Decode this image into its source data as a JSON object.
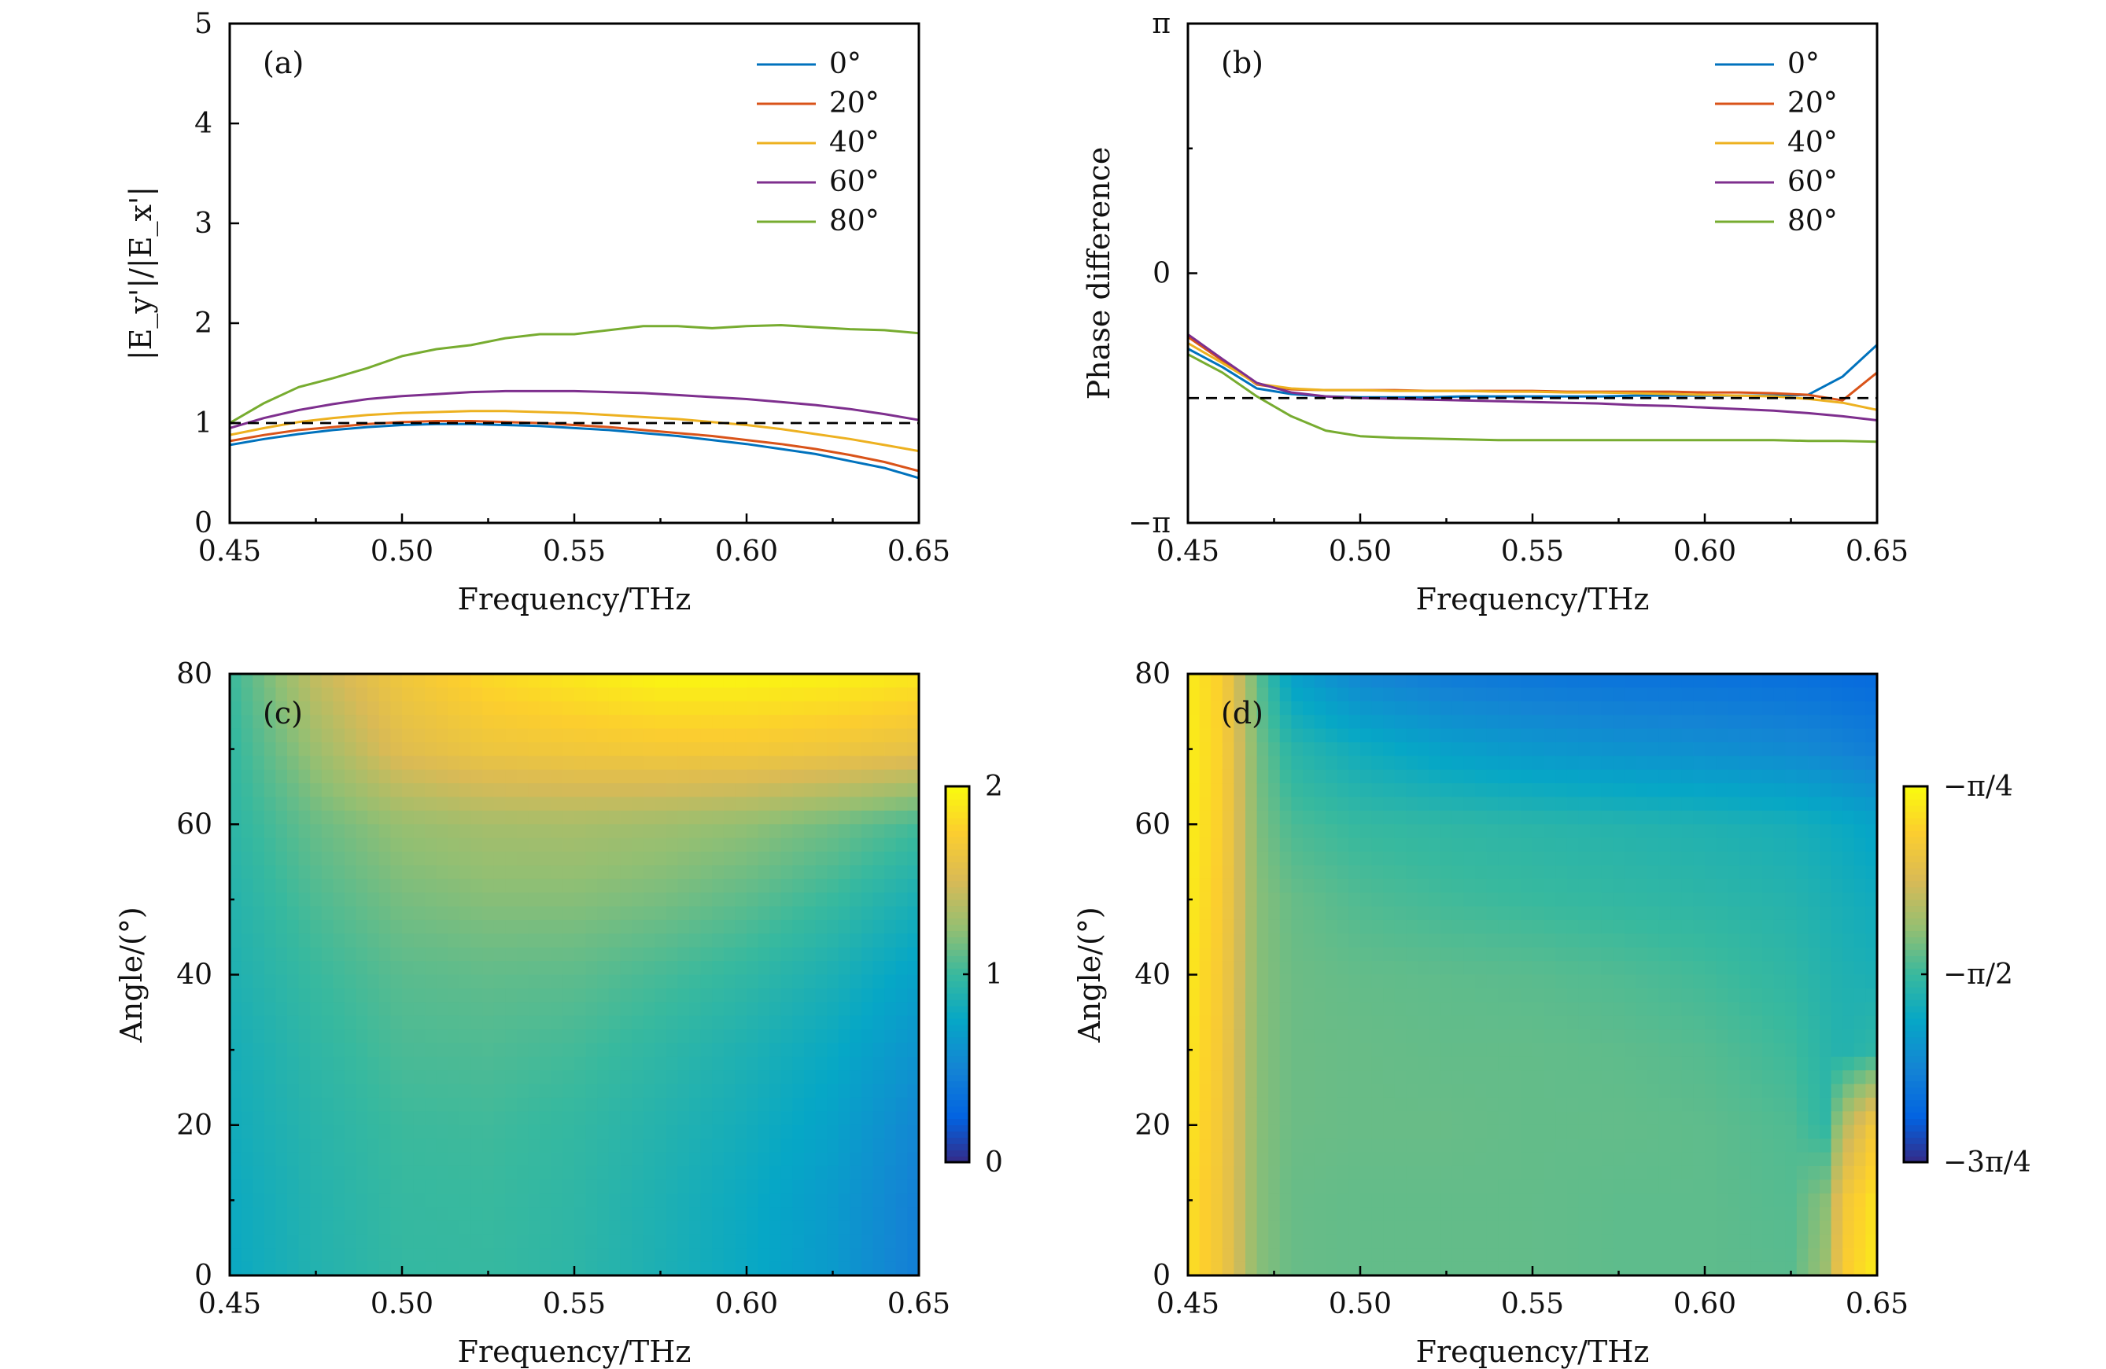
{
  "chart_data": [
    {
      "panel": "(a)",
      "type": "line",
      "xlabel": "Frequency/THz",
      "ylabel": "|E_y'|/|E_x'|",
      "xlim": [
        0.45,
        0.65
      ],
      "ylim": [
        0,
        5
      ],
      "xticks": [
        "0.45",
        "0.50",
        "0.55",
        "0.60",
        "0.65"
      ],
      "yticks": [
        "0",
        "1",
        "2",
        "3",
        "4",
        "5"
      ],
      "reference_line": 1,
      "legend_position": "top-right",
      "x": [
        0.45,
        0.46,
        0.47,
        0.48,
        0.49,
        0.5,
        0.51,
        0.52,
        0.53,
        0.54,
        0.55,
        0.56,
        0.57,
        0.58,
        0.59,
        0.6,
        0.61,
        0.62,
        0.63,
        0.64,
        0.65
      ],
      "series": [
        {
          "name": "0°",
          "color": "#0072BD",
          "values": [
            0.78,
            0.84,
            0.89,
            0.93,
            0.96,
            0.98,
            0.99,
            0.99,
            0.98,
            0.97,
            0.95,
            0.93,
            0.9,
            0.87,
            0.83,
            0.79,
            0.74,
            0.69,
            0.62,
            0.55,
            0.45
          ]
        },
        {
          "name": "20°",
          "color": "#D95319",
          "values": [
            0.82,
            0.88,
            0.93,
            0.96,
            0.99,
            1.01,
            1.02,
            1.02,
            1.01,
            1.0,
            0.98,
            0.96,
            0.93,
            0.9,
            0.87,
            0.83,
            0.79,
            0.74,
            0.68,
            0.61,
            0.52
          ]
        },
        {
          "name": "40°",
          "color": "#EDB120",
          "values": [
            0.88,
            0.95,
            1.01,
            1.05,
            1.08,
            1.1,
            1.11,
            1.12,
            1.12,
            1.11,
            1.1,
            1.08,
            1.06,
            1.04,
            1.01,
            0.98,
            0.94,
            0.89,
            0.84,
            0.78,
            0.72
          ]
        },
        {
          "name": "60°",
          "color": "#7E2F8E",
          "values": [
            0.95,
            1.05,
            1.13,
            1.19,
            1.24,
            1.27,
            1.29,
            1.31,
            1.32,
            1.32,
            1.32,
            1.31,
            1.3,
            1.28,
            1.26,
            1.24,
            1.21,
            1.18,
            1.14,
            1.09,
            1.03
          ]
        },
        {
          "name": "80°",
          "color": "#77AC30",
          "values": [
            1.0,
            1.2,
            1.36,
            1.45,
            1.55,
            1.67,
            1.74,
            1.78,
            1.85,
            1.89,
            1.89,
            1.93,
            1.97,
            1.97,
            1.95,
            1.97,
            1.98,
            1.96,
            1.94,
            1.93,
            1.9
          ]
        }
      ]
    },
    {
      "panel": "(b)",
      "type": "line",
      "xlabel": "Frequency/THz",
      "ylabel": "Phase difference",
      "xlim": [
        0.45,
        0.65
      ],
      "ylim": [
        -3.14159,
        3.14159
      ],
      "xticks": [
        "0.45",
        "0.50",
        "0.55",
        "0.60",
        "0.65"
      ],
      "yticks": [
        "π",
        "0",
        "−π"
      ],
      "reference_line": -1.5708,
      "legend_position": "top-right",
      "x": [
        0.45,
        0.46,
        0.47,
        0.48,
        0.49,
        0.5,
        0.51,
        0.52,
        0.53,
        0.54,
        0.55,
        0.56,
        0.57,
        0.58,
        0.59,
        0.6,
        0.61,
        0.62,
        0.63,
        0.64,
        0.65
      ],
      "series": [
        {
          "name": "0°",
          "color": "#0072BD",
          "values": [
            -0.95,
            -1.18,
            -1.45,
            -1.52,
            -1.55,
            -1.56,
            -1.56,
            -1.56,
            -1.55,
            -1.55,
            -1.55,
            -1.55,
            -1.55,
            -1.54,
            -1.54,
            -1.54,
            -1.54,
            -1.54,
            -1.53,
            -1.3,
            -0.9
          ]
        },
        {
          "name": "20°",
          "color": "#D95319",
          "values": [
            -0.8,
            -1.1,
            -1.4,
            -1.46,
            -1.47,
            -1.47,
            -1.47,
            -1.48,
            -1.48,
            -1.48,
            -1.48,
            -1.49,
            -1.49,
            -1.49,
            -1.49,
            -1.5,
            -1.5,
            -1.51,
            -1.53,
            -1.6,
            -1.25
          ]
        },
        {
          "name": "40°",
          "color": "#EDB120",
          "values": [
            -0.88,
            -1.13,
            -1.39,
            -1.45,
            -1.47,
            -1.47,
            -1.48,
            -1.48,
            -1.48,
            -1.49,
            -1.49,
            -1.5,
            -1.5,
            -1.51,
            -1.52,
            -1.53,
            -1.54,
            -1.55,
            -1.58,
            -1.63,
            -1.72
          ]
        },
        {
          "name": "60°",
          "color": "#7E2F8E",
          "values": [
            -0.77,
            -1.08,
            -1.38,
            -1.5,
            -1.55,
            -1.57,
            -1.58,
            -1.59,
            -1.6,
            -1.61,
            -1.62,
            -1.63,
            -1.64,
            -1.66,
            -1.67,
            -1.69,
            -1.71,
            -1.73,
            -1.76,
            -1.8,
            -1.85
          ]
        },
        {
          "name": "80°",
          "color": "#77AC30",
          "values": [
            -1.02,
            -1.25,
            -1.55,
            -1.8,
            -1.98,
            -2.05,
            -2.07,
            -2.08,
            -2.09,
            -2.1,
            -2.1,
            -2.1,
            -2.1,
            -2.1,
            -2.1,
            -2.1,
            -2.1,
            -2.1,
            -2.11,
            -2.11,
            -2.12
          ]
        }
      ]
    },
    {
      "panel": "(c)",
      "type": "heatmap",
      "xlabel": "Frequency/THz",
      "ylabel": "Angle/(°)",
      "xlim": [
        0.45,
        0.65
      ],
      "ylim": [
        0,
        80
      ],
      "xticks": [
        "0.45",
        "0.50",
        "0.55",
        "0.60",
        "0.65"
      ],
      "yticks": [
        "0",
        "20",
        "40",
        "60",
        "80"
      ],
      "colorbar": {
        "min": 0,
        "max": 2,
        "ticks": [
          "0",
          "1",
          "2"
        ]
      },
      "x": [
        0.45,
        0.475,
        0.5,
        0.525,
        0.55,
        0.575,
        0.6,
        0.625,
        0.65
      ],
      "y": [
        0,
        10,
        20,
        30,
        40,
        50,
        60,
        70,
        80
      ],
      "z": [
        [
          0.78,
          0.9,
          0.98,
          0.99,
          0.95,
          0.87,
          0.78,
          0.66,
          0.45
        ],
        [
          0.79,
          0.91,
          0.99,
          1.0,
          0.96,
          0.88,
          0.79,
          0.67,
          0.47
        ],
        [
          0.82,
          0.93,
          1.01,
          1.02,
          0.98,
          0.91,
          0.83,
          0.72,
          0.52
        ],
        [
          0.84,
          0.96,
          1.05,
          1.06,
          1.03,
          0.96,
          0.88,
          0.78,
          0.62
        ],
        [
          0.88,
          1.0,
          1.09,
          1.11,
          1.1,
          1.04,
          0.97,
          0.87,
          0.72
        ],
        [
          0.91,
          1.06,
          1.17,
          1.21,
          1.21,
          1.17,
          1.1,
          1.0,
          0.86
        ],
        [
          0.95,
          1.13,
          1.26,
          1.31,
          1.32,
          1.29,
          1.24,
          1.15,
          1.03
        ],
        [
          0.97,
          1.28,
          1.55,
          1.65,
          1.68,
          1.7,
          1.7,
          1.66,
          1.6
        ],
        [
          1.0,
          1.42,
          1.67,
          1.82,
          1.9,
          1.97,
          1.97,
          1.95,
          1.9
        ]
      ]
    },
    {
      "panel": "(d)",
      "type": "heatmap",
      "xlabel": "Frequency/THz",
      "ylabel": "Angle/(°)",
      "xlim": [
        0.45,
        0.65
      ],
      "ylim": [
        0,
        80
      ],
      "xticks": [
        "0.45",
        "0.50",
        "0.55",
        "0.60",
        "0.65"
      ],
      "yticks": [
        "0",
        "20",
        "40",
        "60",
        "80"
      ],
      "colorbar": {
        "min": -2.356,
        "max": -0.785,
        "ticks": [
          "−π/4",
          "−π/2",
          "−3π/4"
        ]
      },
      "x": [
        0.45,
        0.46,
        0.47,
        0.48,
        0.5,
        0.525,
        0.55,
        0.575,
        0.6,
        0.625,
        0.635,
        0.64,
        0.65
      ],
      "y": [
        0,
        10,
        20,
        30,
        40,
        50,
        60,
        70,
        80
      ],
      "z": [
        [
          -0.9,
          -1.05,
          -1.4,
          -1.47,
          -1.48,
          -1.48,
          -1.48,
          -1.49,
          -1.49,
          -1.5,
          -1.35,
          -1.0,
          -0.85
        ],
        [
          -0.9,
          -1.05,
          -1.4,
          -1.47,
          -1.48,
          -1.48,
          -1.48,
          -1.49,
          -1.49,
          -1.51,
          -1.4,
          -1.05,
          -0.88
        ],
        [
          -0.88,
          -1.04,
          -1.4,
          -1.46,
          -1.47,
          -1.47,
          -1.48,
          -1.48,
          -1.49,
          -1.52,
          -1.6,
          -1.3,
          -1.0
        ],
        [
          -0.87,
          -1.03,
          -1.4,
          -1.46,
          -1.47,
          -1.48,
          -1.48,
          -1.49,
          -1.51,
          -1.56,
          -1.62,
          -1.65,
          -1.6
        ],
        [
          -0.86,
          -1.02,
          -1.4,
          -1.46,
          -1.48,
          -1.49,
          -1.5,
          -1.52,
          -1.55,
          -1.6,
          -1.64,
          -1.66,
          -1.68
        ],
        [
          -0.85,
          -1.0,
          -1.4,
          -1.47,
          -1.52,
          -1.55,
          -1.57,
          -1.59,
          -1.61,
          -1.64,
          -1.67,
          -1.69,
          -1.72
        ],
        [
          -0.84,
          -0.98,
          -1.42,
          -1.53,
          -1.58,
          -1.6,
          -1.62,
          -1.64,
          -1.66,
          -1.69,
          -1.72,
          -1.74,
          -1.78
        ],
        [
          -0.84,
          -0.97,
          -1.44,
          -1.62,
          -1.72,
          -1.8,
          -1.85,
          -1.88,
          -1.9,
          -1.93,
          -1.95,
          -1.97,
          -2.0
        ],
        [
          -0.85,
          -0.98,
          -1.48,
          -1.8,
          -1.95,
          -2.02,
          -2.05,
          -2.07,
          -2.08,
          -2.09,
          -2.1,
          -2.11,
          -2.12
        ]
      ]
    }
  ]
}
